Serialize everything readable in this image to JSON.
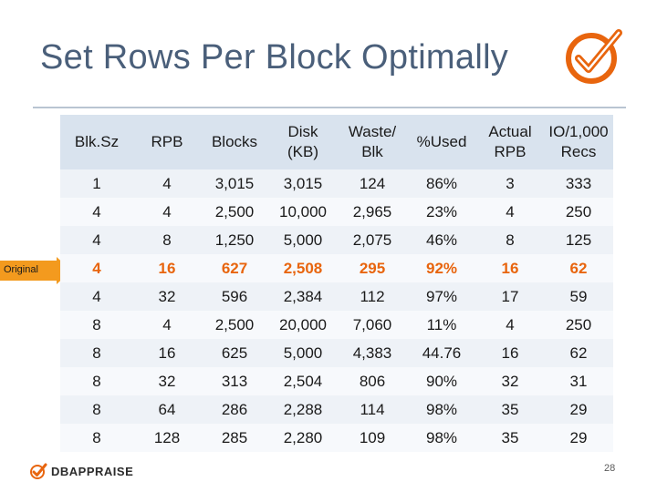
{
  "slide": {
    "title": "Set Rows Per Block Optimally",
    "page_number": "28",
    "original_label": "Original",
    "brand_logo_text": "DBAPPRAISE"
  },
  "table": {
    "headers": [
      "Blk.Sz",
      "RPB",
      "Blocks",
      "Disk\n(KB)",
      "Waste/\nBlk",
      "%Used",
      "Actual\nRPB",
      "IO/1,000\nRecs"
    ],
    "rows": [
      [
        "1",
        "4",
        "3,015",
        "3,015",
        "124",
        "86%",
        "3",
        "333"
      ],
      [
        "4",
        "4",
        "2,500",
        "10,000",
        "2,965",
        "23%",
        "4",
        "250"
      ],
      [
        "4",
        "8",
        "1,250",
        "5,000",
        "2,075",
        "46%",
        "8",
        "125"
      ],
      [
        "4",
        "16",
        "627",
        "2,508",
        "295",
        "92%",
        "16",
        "62"
      ],
      [
        "4",
        "32",
        "596",
        "2,384",
        "112",
        "97%",
        "17",
        "59"
      ],
      [
        "8",
        "4",
        "2,500",
        "20,000",
        "7,060",
        "11%",
        "4",
        "250"
      ],
      [
        "8",
        "16",
        "625",
        "5,000",
        "4,383",
        "44.76",
        "16",
        "62"
      ],
      [
        "8",
        "32",
        "313",
        "2,504",
        "806",
        "90%",
        "32",
        "31"
      ],
      [
        "8",
        "64",
        "286",
        "2,288",
        "114",
        "98%",
        "35",
        "29"
      ],
      [
        "8",
        "128",
        "285",
        "2,280",
        "109",
        "98%",
        "35",
        "29"
      ]
    ],
    "highlight_row_index": 3
  },
  "colors": {
    "accent": "#e8650e",
    "title": "#4a5f7a",
    "header_bg": "#d9e3ee"
  }
}
